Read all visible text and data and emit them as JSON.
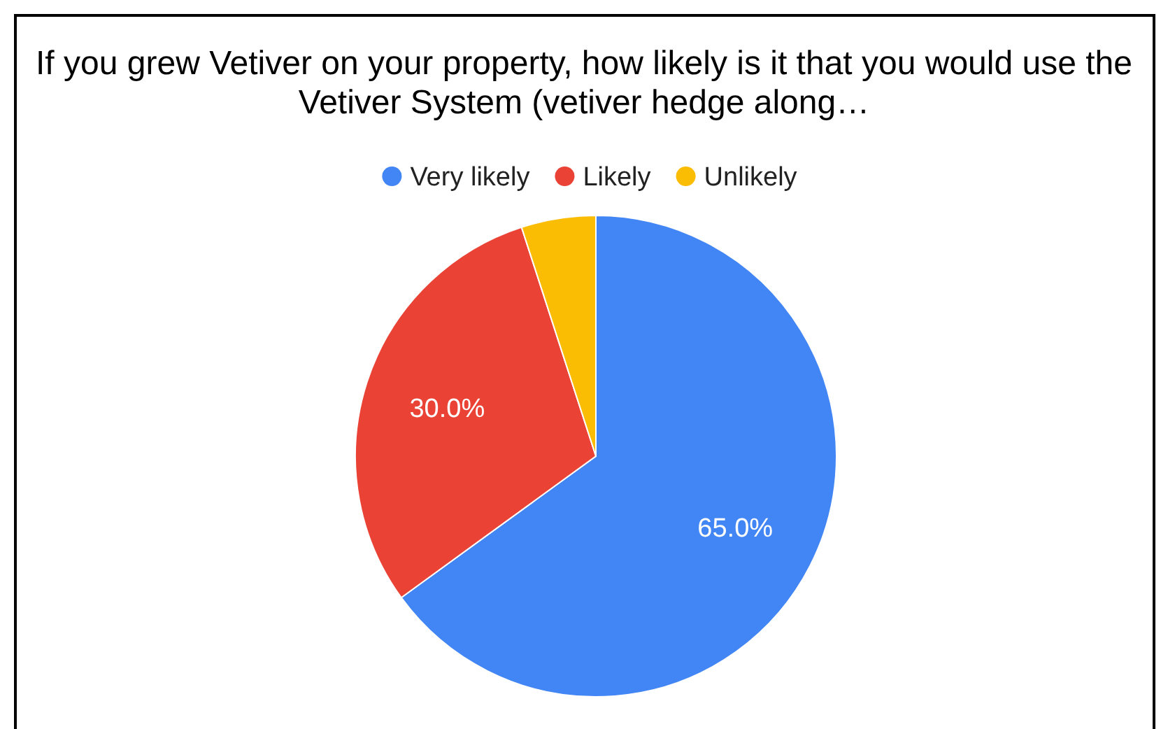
{
  "chart_data": {
    "type": "pie",
    "title": "If you grew Vetiver on your property, how likely is it that you would use the Vetiver System (vetiver hedge along…",
    "categories": [
      "Very likely",
      "Likely",
      "Unlikely"
    ],
    "values": [
      65,
      30,
      5
    ],
    "colors": [
      "#4285f4",
      "#ea4335",
      "#fbbc04"
    ],
    "value_labels": [
      "65.0%",
      "30.0%",
      null
    ],
    "legend": "top"
  }
}
